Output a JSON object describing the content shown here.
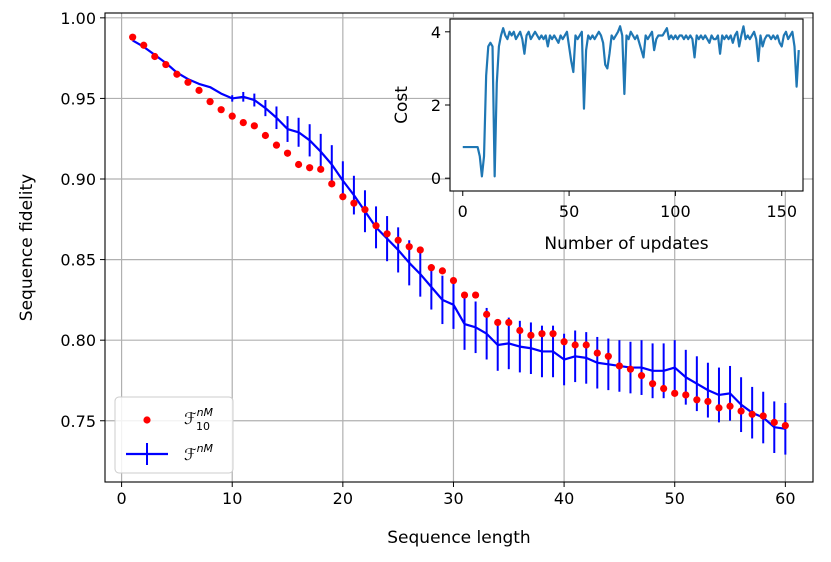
{
  "chart_data": [
    {
      "type": "line",
      "xlabel": "Sequence length",
      "ylabel": "Sequence fidelity",
      "xlim": [
        -1.5,
        62.5
      ],
      "ylim": [
        0.712,
        1.003
      ],
      "xticks": [
        0,
        10,
        20,
        30,
        40,
        50,
        60
      ],
      "yticks": [
        0.75,
        0.8,
        0.85,
        0.9,
        0.95,
        1.0
      ],
      "xtick_labels": [
        "0",
        "10",
        "20",
        "30",
        "40",
        "50",
        "60"
      ],
      "ytick_labels": [
        "0.75",
        "0.80",
        "0.85",
        "0.90",
        "0.95",
        "1.00"
      ],
      "grid": true,
      "legend": {
        "position": "lower-left",
        "entries": [
          {
            "base": "ℱ",
            "sup": "nM",
            "sub": "10"
          },
          {
            "base": "ℱ",
            "sup": "nM",
            "sub": ""
          }
        ]
      },
      "series": [
        {
          "kind": "scatter",
          "color": "#ff0000",
          "x": [
            1,
            2,
            3,
            4,
            5,
            6,
            7,
            8,
            9,
            10,
            11,
            12,
            13,
            14,
            15,
            16,
            17,
            18,
            19,
            20,
            21,
            22,
            23,
            24,
            25,
            26,
            27,
            28,
            29,
            30,
            31,
            32,
            33,
            34,
            35,
            36,
            37,
            38,
            39,
            40,
            41,
            42,
            43,
            44,
            45,
            46,
            47,
            48,
            49,
            50,
            51,
            52,
            53,
            54,
            55,
            56,
            57,
            58,
            59,
            60
          ],
          "y": [
            0.988,
            0.983,
            0.976,
            0.971,
            0.965,
            0.96,
            0.955,
            0.948,
            0.943,
            0.939,
            0.935,
            0.933,
            0.927,
            0.921,
            0.916,
            0.909,
            0.907,
            0.906,
            0.897,
            0.889,
            0.885,
            0.881,
            0.871,
            0.866,
            0.862,
            0.858,
            0.856,
            0.845,
            0.843,
            0.837,
            0.828,
            0.828,
            0.816,
            0.811,
            0.811,
            0.806,
            0.803,
            0.804,
            0.804,
            0.799,
            0.797,
            0.797,
            0.792,
            0.79,
            0.784,
            0.782,
            0.778,
            0.773,
            0.77,
            0.767,
            0.766,
            0.763,
            0.762,
            0.758,
            0.759,
            0.756,
            0.754,
            0.753,
            0.749,
            0.747
          ]
        },
        {
          "kind": "errorbar-line",
          "color": "#0000ff",
          "x": [
            1,
            2,
            3,
            4,
            5,
            6,
            7,
            8,
            9,
            10,
            11,
            12,
            13,
            14,
            15,
            16,
            17,
            18,
            19,
            20,
            21,
            22,
            23,
            24,
            25,
            26,
            27,
            28,
            29,
            30,
            31,
            32,
            33,
            34,
            35,
            36,
            37,
            38,
            39,
            40,
            41,
            42,
            43,
            44,
            45,
            46,
            47,
            48,
            49,
            50,
            51,
            52,
            53,
            54,
            55,
            56,
            57,
            58,
            59,
            60
          ],
          "y": [
            0.986,
            0.982,
            0.977,
            0.972,
            0.966,
            0.962,
            0.959,
            0.957,
            0.953,
            0.95,
            0.951,
            0.949,
            0.944,
            0.938,
            0.931,
            0.929,
            0.924,
            0.917,
            0.909,
            0.899,
            0.89,
            0.88,
            0.87,
            0.863,
            0.856,
            0.848,
            0.841,
            0.833,
            0.825,
            0.822,
            0.81,
            0.808,
            0.804,
            0.797,
            0.798,
            0.796,
            0.795,
            0.793,
            0.793,
            0.788,
            0.79,
            0.789,
            0.786,
            0.785,
            0.784,
            0.783,
            0.783,
            0.781,
            0.781,
            0.783,
            0.777,
            0.773,
            0.769,
            0.766,
            0.767,
            0.76,
            0.755,
            0.752,
            0.746,
            0.745
          ],
          "yerr": [
            0,
            0,
            0,
            0,
            0,
            0,
            0,
            0,
            0,
            0.002,
            0.003,
            0.004,
            0.005,
            0.007,
            0.008,
            0.009,
            0.01,
            0.011,
            0.012,
            0.012,
            0.012,
            0.013,
            0.013,
            0.014,
            0.014,
            0.014,
            0.014,
            0.014,
            0.015,
            0.015,
            0.016,
            0.016,
            0.016,
            0.016,
            0.016,
            0.016,
            0.016,
            0.016,
            0.016,
            0.016,
            0.016,
            0.016,
            0.016,
            0.016,
            0.016,
            0.016,
            0.017,
            0.017,
            0.017,
            0.017,
            0.017,
            0.017,
            0.017,
            0.017,
            0.017,
            0.017,
            0.016,
            0.016,
            0.016,
            0.016
          ]
        }
      ]
    },
    {
      "type": "line",
      "position": "inset-top-right",
      "xlabel": "Number of updates",
      "ylabel": "Cost",
      "xlim": [
        -6,
        160
      ],
      "ylim": [
        -0.35,
        4.35
      ],
      "xticks": [
        0,
        50,
        100,
        150
      ],
      "yticks": [
        0,
        2,
        4
      ],
      "xtick_labels": [
        "0",
        "50",
        "100",
        "150"
      ],
      "ytick_labels": [
        "0",
        "2",
        "4"
      ],
      "grid": false,
      "series": [
        {
          "color": "#1f77b4",
          "x": [
            0,
            1,
            2,
            3,
            4,
            5,
            6,
            7,
            8,
            9,
            10,
            11,
            12,
            13,
            14,
            15,
            16,
            17,
            18,
            19,
            20,
            21,
            22,
            23,
            24,
            25,
            26,
            27,
            28,
            29,
            30,
            31,
            32,
            33,
            34,
            35,
            36,
            37,
            38,
            39,
            40,
            41,
            42,
            43,
            44,
            45,
            46,
            47,
            48,
            49,
            50,
            51,
            52,
            53,
            54,
            55,
            56,
            57,
            58,
            59,
            60,
            61,
            62,
            63,
            64,
            65,
            66,
            67,
            68,
            69,
            70,
            71,
            72,
            73,
            74,
            75,
            76,
            77,
            78,
            79,
            80,
            81,
            82,
            83,
            84,
            85,
            86,
            87,
            88,
            89,
            90,
            91,
            92,
            93,
            94,
            95,
            96,
            97,
            98,
            99,
            100,
            101,
            102,
            103,
            104,
            105,
            106,
            107,
            108,
            109,
            110,
            111,
            112,
            113,
            114,
            115,
            116,
            117,
            118,
            119,
            120,
            121,
            122,
            123,
            124,
            125,
            126,
            127,
            128,
            129,
            130,
            131,
            132,
            133,
            134,
            135,
            136,
            137,
            138,
            139,
            140,
            141,
            142,
            143,
            144,
            145,
            146,
            147,
            148,
            149,
            150,
            151,
            152,
            153,
            154,
            155,
            156,
            157,
            158
          ],
          "y": [
            0.85,
            0.85,
            0.85,
            0.85,
            0.85,
            0.85,
            0.85,
            0.85,
            0.6,
            0.05,
            0.6,
            2.8,
            3.6,
            3.7,
            3.6,
            0.05,
            2.6,
            3.6,
            3.9,
            4.1,
            3.9,
            3.8,
            4.0,
            3.9,
            4.0,
            3.8,
            3.9,
            4.0,
            3.8,
            3.4,
            3.9,
            4.0,
            3.8,
            3.9,
            4.0,
            3.9,
            3.8,
            3.9,
            3.8,
            3.9,
            3.6,
            3.9,
            3.8,
            3.9,
            3.8,
            3.7,
            3.9,
            3.8,
            3.9,
            4.0,
            3.6,
            3.2,
            2.9,
            3.9,
            3.8,
            3.9,
            4.0,
            1.9,
            3.5,
            3.9,
            3.8,
            3.9,
            3.8,
            3.9,
            4.0,
            3.9,
            3.7,
            3.1,
            3.0,
            3.4,
            3.9,
            3.8,
            3.9,
            4.0,
            4.15,
            3.9,
            2.3,
            3.9,
            3.8,
            4.0,
            3.9,
            3.8,
            3.9,
            3.7,
            3.5,
            3.3,
            3.9,
            3.8,
            3.9,
            4.0,
            3.5,
            3.8,
            3.9,
            3.9,
            3.9,
            4.0,
            4.1,
            3.8,
            3.9,
            3.8,
            3.9,
            3.8,
            3.9,
            3.9,
            3.8,
            3.9,
            3.8,
            3.9,
            3.8,
            3.3,
            3.9,
            3.8,
            3.9,
            3.8,
            3.9,
            3.8,
            3.7,
            3.9,
            3.8,
            3.8,
            3.9,
            3.4,
            3.9,
            3.8,
            3.9,
            3.8,
            3.9,
            3.7,
            3.9,
            4.0,
            3.6,
            3.9,
            4.15,
            3.8,
            3.9,
            3.8,
            3.9,
            4.0,
            3.8,
            3.2,
            3.9,
            3.6,
            3.8,
            3.9,
            3.9,
            3.8,
            3.9,
            3.8,
            3.9,
            3.7,
            3.6,
            3.9,
            4.0,
            3.8,
            3.9,
            4.0,
            3.6,
            2.5,
            3.5
          ]
        }
      ]
    }
  ]
}
